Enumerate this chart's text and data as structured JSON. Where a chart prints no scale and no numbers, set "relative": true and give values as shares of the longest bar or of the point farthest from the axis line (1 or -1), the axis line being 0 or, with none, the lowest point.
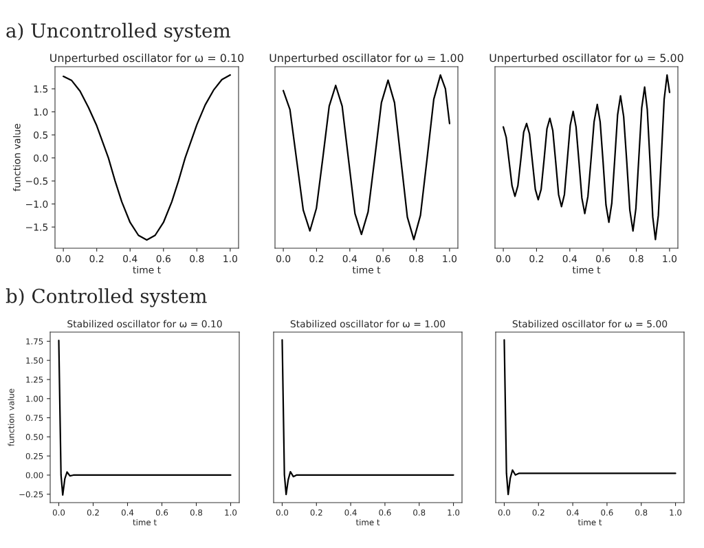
{
  "chart_data": [
    {
      "type": "line",
      "title": "Unperturbed oscillator for ω = 0.10",
      "xlabel": "time t",
      "ylabel": "function value",
      "annotations": [
        "a) Uncontrolled system"
      ],
      "x": [
        0,
        0.05,
        0.1,
        0.15,
        0.2,
        0.27,
        0.31,
        0.35,
        0.4,
        0.45,
        0.5,
        0.55,
        0.6,
        0.65,
        0.69,
        0.73,
        0.8,
        0.85,
        0.9,
        0.95,
        1.0
      ],
      "series": [
        {
          "color": "#000000",
          "values": [
            1.77,
            1.68,
            1.45,
            1.1,
            0.7,
            0,
            -0.5,
            -0.95,
            -1.4,
            -1.68,
            -1.78,
            -1.68,
            -1.4,
            -0.95,
            -0.5,
            0,
            0.72,
            1.15,
            1.47,
            1.7,
            1.8
          ]
        }
      ],
      "xlim": [
        -0.05,
        1.05
      ],
      "ylim": [
        -1.96,
        1.98
      ],
      "xticks": [
        {
          "value": 0,
          "label": "0.0"
        },
        {
          "value": 0.2,
          "label": "0.2"
        },
        {
          "value": 0.4,
          "label": "0.4"
        },
        {
          "value": 0.6,
          "label": "0.6"
        },
        {
          "value": 0.8,
          "label": "0.8"
        },
        {
          "value": 1,
          "label": "1.0"
        }
      ],
      "yticks": [
        {
          "value": -1.5,
          "label": "−1.5"
        },
        {
          "value": -1.0,
          "label": "−1.0"
        },
        {
          "value": -0.5,
          "label": "−0.5"
        },
        {
          "value": 0,
          "label": "0.0"
        },
        {
          "value": 0.5,
          "label": "0.5"
        },
        {
          "value": 1.0,
          "label": "1.0"
        },
        {
          "value": 1.5,
          "label": "1.5"
        }
      ]
    },
    {
      "type": "line",
      "title": "Unperturbed oscillator for ω = 1.00",
      "xlabel": "time t",
      "relative": true,
      "tick_labels": "x",
      "x": [
        0,
        0.04,
        0.08,
        0.12,
        0.16,
        0.199,
        0.2375,
        0.276,
        0.315,
        0.354,
        0.3925,
        0.431,
        0.47,
        0.51,
        0.55,
        0.59,
        0.63,
        0.669,
        0.7075,
        0.746,
        0.785,
        0.825,
        0.865,
        0.905,
        0.945,
        0.975,
        1.0
      ],
      "series": [
        {
          "color": "#000000",
          "values": [
            0.91,
            0.8,
            0.51,
            0.22,
            0.1,
            0.23,
            0.52,
            0.82,
            0.94,
            0.82,
            0.51,
            0.2,
            0.08,
            0.21,
            0.52,
            0.84,
            0.97,
            0.84,
            0.51,
            0.18,
            0.05,
            0.19,
            0.52,
            0.86,
            1,
            0.92,
            0.72
          ]
        }
      ],
      "xlim": [
        -0.05,
        1.05
      ],
      "xticks": [
        {
          "value": 0,
          "label": "0.0"
        },
        {
          "value": 0.2,
          "label": "0.2"
        },
        {
          "value": 0.4,
          "label": "0.4"
        },
        {
          "value": 0.6,
          "label": "0.6"
        },
        {
          "value": 0.8,
          "label": "0.8"
        },
        {
          "value": 1,
          "label": "1.0"
        }
      ]
    },
    {
      "type": "line",
      "title": "Unperturbed oscillator for ω = 5.00",
      "xlabel": "time t",
      "relative": true,
      "tick_labels": "x",
      "x": [
        0,
        0.0175,
        0.035,
        0.0525,
        0.07,
        0.0875,
        0.105,
        0.1225,
        0.14,
        0.1575,
        0.175,
        0.1925,
        0.21,
        0.2275,
        0.245,
        0.2625,
        0.28,
        0.2975,
        0.315,
        0.3325,
        0.35,
        0.3675,
        0.385,
        0.4025,
        0.42,
        0.4375,
        0.455,
        0.4725,
        0.49,
        0.509,
        0.5275,
        0.546,
        0.565,
        0.5825,
        0.6,
        0.6175,
        0.635,
        0.6525,
        0.67,
        0.6875,
        0.705,
        0.724,
        0.7425,
        0.761,
        0.78,
        0.7975,
        0.815,
        0.8325,
        0.85,
        0.866,
        0.8825,
        0.899,
        0.915,
        0.9325,
        0.95,
        0.9675,
        0.985,
        1.0
      ],
      "series": [
        {
          "color": "#000000",
          "values": [
            0.7,
            0.64,
            0.5,
            0.36,
            0.3,
            0.36,
            0.51,
            0.67,
            0.72,
            0.66,
            0.5,
            0.34,
            0.28,
            0.34,
            0.51,
            0.69,
            0.75,
            0.68,
            0.5,
            0.31,
            0.24,
            0.31,
            0.51,
            0.71,
            0.79,
            0.7,
            0.5,
            0.29,
            0.2,
            0.3,
            0.51,
            0.73,
            0.83,
            0.73,
            0.5,
            0.25,
            0.15,
            0.26,
            0.51,
            0.77,
            0.88,
            0.76,
            0.5,
            0.22,
            0.1,
            0.23,
            0.52,
            0.81,
            0.93,
            0.8,
            0.5,
            0.18,
            0.05,
            0.19,
            0.52,
            0.86,
            1,
            0.9
          ]
        }
      ],
      "xlim": [
        -0.05,
        1.05
      ],
      "xticks": [
        {
          "value": 0,
          "label": "0.0"
        },
        {
          "value": 0.2,
          "label": "0.2"
        },
        {
          "value": 0.4,
          "label": "0.4"
        },
        {
          "value": 0.6,
          "label": "0.6"
        },
        {
          "value": 0.8,
          "label": "0.8"
        },
        {
          "value": 1,
          "label": "1.0"
        }
      ]
    },
    {
      "type": "line",
      "title": "Stabilized oscillator for ω = 0.10",
      "xlabel": "time t",
      "ylabel": "function value",
      "annotations": [
        "b) Controlled system"
      ],
      "x": [
        0,
        0.013,
        0.023,
        0.035,
        0.048,
        0.065,
        0.085,
        1.0
      ],
      "series": [
        {
          "color": "#000000",
          "values": [
            1.76,
            0,
            -0.26,
            -0.05,
            0.04,
            -0.01,
            0,
            0
          ]
        }
      ],
      "xlim": [
        -0.05,
        1.05
      ],
      "ylim": [
        -0.36,
        1.87
      ],
      "xticks": [
        {
          "value": 0,
          "label": "0.0"
        },
        {
          "value": 0.2,
          "label": "0.2"
        },
        {
          "value": 0.4,
          "label": "0.4"
        },
        {
          "value": 0.6,
          "label": "0.6"
        },
        {
          "value": 0.8,
          "label": "0.8"
        },
        {
          "value": 1,
          "label": "1.0"
        }
      ],
      "yticks": [
        {
          "value": -0.25,
          "label": "−0.25"
        },
        {
          "value": 0,
          "label": "0.00"
        },
        {
          "value": 0.25,
          "label": "0.25"
        },
        {
          "value": 0.5,
          "label": "0.50"
        },
        {
          "value": 0.75,
          "label": "0.75"
        },
        {
          "value": 1.0,
          "label": "1.00"
        },
        {
          "value": 1.25,
          "label": "1.25"
        },
        {
          "value": 1.5,
          "label": "1.50"
        },
        {
          "value": 1.75,
          "label": "1.75"
        }
      ]
    },
    {
      "type": "line",
      "title": "Stabilized oscillator for ω = 1.00",
      "xlabel": "time t",
      "relative": true,
      "tick_labels": "x",
      "x": [
        0,
        0.013,
        0.023,
        0.035,
        0.048,
        0.065,
        0.085,
        1.0
      ],
      "series": [
        {
          "color": "#000000",
          "values": [
            1,
            0.17,
            0.05,
            0.14,
            0.19,
            0.16,
            0.17,
            0.17
          ]
        }
      ],
      "xlim": [
        -0.05,
        1.05
      ],
      "xticks": [
        {
          "value": 0,
          "label": "0.0"
        },
        {
          "value": 0.2,
          "label": "0.2"
        },
        {
          "value": 0.4,
          "label": "0.4"
        },
        {
          "value": 0.6,
          "label": "0.6"
        },
        {
          "value": 0.8,
          "label": "0.8"
        },
        {
          "value": 1,
          "label": "1.0"
        }
      ]
    },
    {
      "type": "line",
      "title": "Stabilized oscillator for ω = 5.00",
      "xlabel": "time t",
      "relative": true,
      "tick_labels": "x",
      "x": [
        0,
        0.013,
        0.023,
        0.035,
        0.048,
        0.065,
        0.085,
        1.0
      ],
      "series": [
        {
          "color": "#000000",
          "values": [
            1,
            0.18,
            0.05,
            0.15,
            0.2,
            0.17,
            0.18,
            0.18
          ]
        }
      ],
      "xlim": [
        -0.05,
        1.05
      ],
      "xticks": [
        {
          "value": 0,
          "label": "0.0"
        },
        {
          "value": 0.2,
          "label": "0.2"
        },
        {
          "value": 0.4,
          "label": "0.4"
        },
        {
          "value": 0.6,
          "label": "0.6"
        },
        {
          "value": 0.8,
          "label": "0.8"
        },
        {
          "value": 1,
          "label": "1.0"
        }
      ]
    }
  ]
}
